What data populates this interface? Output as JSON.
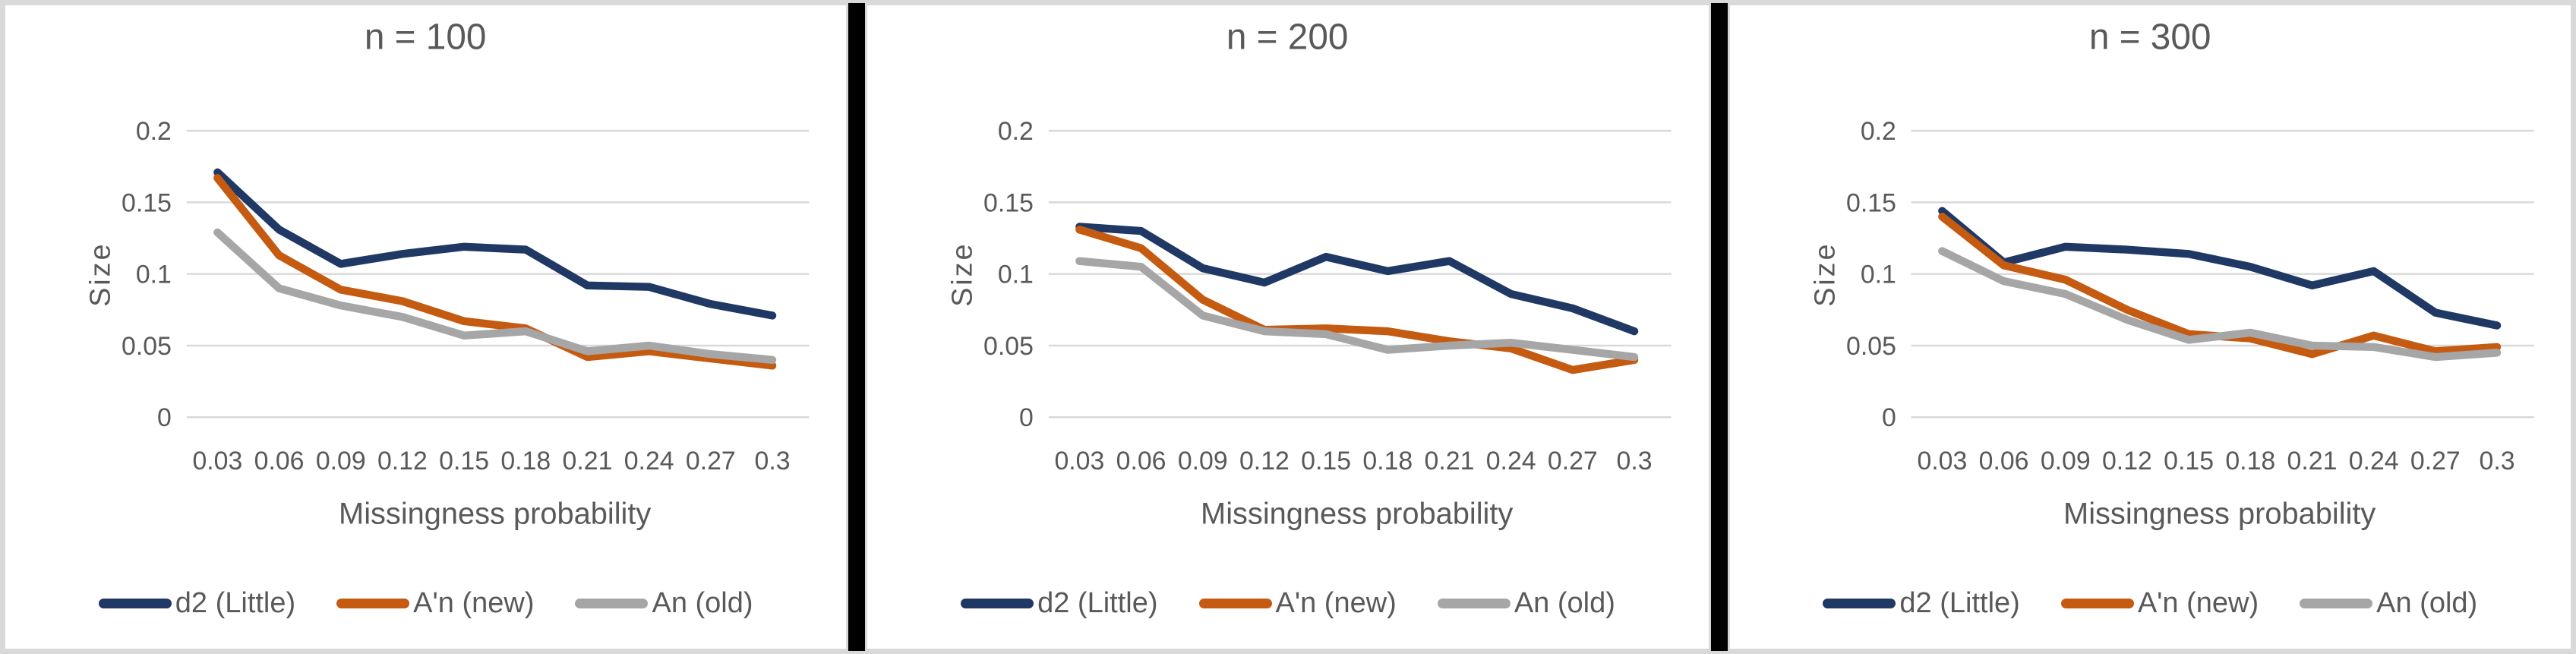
{
  "page": {
    "background_color": "#ffffff",
    "frame_color": "#d9d9d9",
    "divider_color": "#000000",
    "text_color": "#595959",
    "grid_color": "#d9d9d9"
  },
  "axis": {
    "y_label": "Size",
    "x_label": "Missingness probability",
    "y_ticks": [
      "0.2",
      "0.15",
      "0.1",
      "0.05",
      "0"
    ],
    "x_ticks": [
      "0.03",
      "0.06",
      "0.09",
      "0.12",
      "0.15",
      "0.18",
      "0.21",
      "0.24",
      "0.27",
      "0.3"
    ],
    "y_min": 0,
    "y_max": 0.2,
    "grid": true
  },
  "legend": [
    {
      "label": "d2 (Little)",
      "color": "#1f3864"
    },
    {
      "label": "A'n (new)",
      "color": "#c55a11"
    },
    {
      "label": "An (old)",
      "color": "#a6a6a6"
    }
  ],
  "chart_data": [
    {
      "type": "line",
      "title": "n = 100",
      "xlabel": "Missingness probability",
      "ylabel": "Size",
      "ylim": [
        0,
        0.2
      ],
      "legend_position": "bottom",
      "x": [
        0.03,
        0.06,
        0.09,
        0.12,
        0.15,
        0.18,
        0.21,
        0.24,
        0.27,
        0.3
      ],
      "series": [
        {
          "name": "d2 (Little)",
          "color": "#1f3864",
          "values": [
            0.171,
            0.131,
            0.107,
            0.114,
            0.119,
            0.117,
            0.092,
            0.091,
            0.079,
            0.071
          ]
        },
        {
          "name": "A'n (new)",
          "color": "#c55a11",
          "values": [
            0.167,
            0.113,
            0.089,
            0.081,
            0.067,
            0.062,
            0.042,
            0.046,
            0.041,
            0.036
          ]
        },
        {
          "name": "An (old)",
          "color": "#a6a6a6",
          "values": [
            0.129,
            0.09,
            0.078,
            0.07,
            0.057,
            0.06,
            0.046,
            0.05,
            0.044,
            0.04
          ]
        }
      ]
    },
    {
      "type": "line",
      "title": "n = 200",
      "xlabel": "Missingness probability",
      "ylabel": "Size",
      "ylim": [
        0,
        0.2
      ],
      "legend_position": "bottom",
      "x": [
        0.03,
        0.06,
        0.09,
        0.12,
        0.15,
        0.18,
        0.21,
        0.24,
        0.27,
        0.3
      ],
      "series": [
        {
          "name": "d2 (Little)",
          "color": "#1f3864",
          "values": [
            0.133,
            0.13,
            0.104,
            0.094,
            0.112,
            0.102,
            0.109,
            0.086,
            0.076,
            0.06
          ]
        },
        {
          "name": "A'n (new)",
          "color": "#c55a11",
          "values": [
            0.131,
            0.118,
            0.082,
            0.061,
            0.062,
            0.06,
            0.053,
            0.048,
            0.033,
            0.04
          ]
        },
        {
          "name": "An (old)",
          "color": "#a6a6a6",
          "values": [
            0.109,
            0.105,
            0.071,
            0.06,
            0.058,
            0.047,
            0.05,
            0.052,
            0.047,
            0.042
          ]
        }
      ]
    },
    {
      "type": "line",
      "title": "n = 300",
      "xlabel": "Missingness probability",
      "ylabel": "Size",
      "ylim": [
        0,
        0.2
      ],
      "legend_position": "bottom",
      "x": [
        0.03,
        0.06,
        0.09,
        0.12,
        0.15,
        0.18,
        0.21,
        0.24,
        0.27,
        0.3
      ],
      "series": [
        {
          "name": "d2 (Little)",
          "color": "#1f3864",
          "values": [
            0.144,
            0.108,
            0.119,
            0.117,
            0.114,
            0.105,
            0.092,
            0.102,
            0.073,
            0.064
          ]
        },
        {
          "name": "A'n (new)",
          "color": "#c55a11",
          "values": [
            0.14,
            0.106,
            0.096,
            0.075,
            0.058,
            0.055,
            0.044,
            0.057,
            0.046,
            0.049
          ]
        },
        {
          "name": "An (old)",
          "color": "#a6a6a6",
          "values": [
            0.116,
            0.095,
            0.086,
            0.068,
            0.054,
            0.059,
            0.05,
            0.049,
            0.042,
            0.045
          ]
        }
      ]
    }
  ]
}
